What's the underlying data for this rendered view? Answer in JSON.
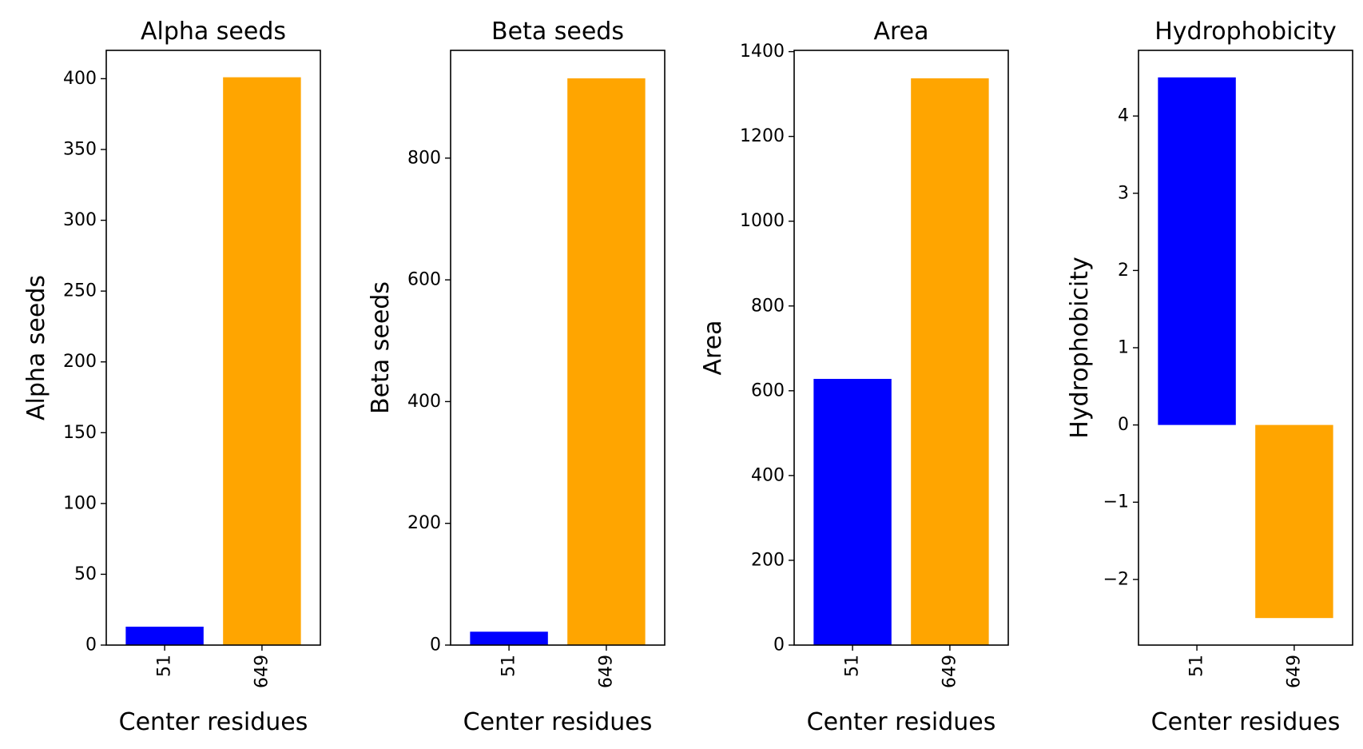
{
  "chart_data": [
    {
      "type": "bar",
      "title": "Alpha seeds",
      "xlabel": "Center residues",
      "ylabel": "Alpha seeds",
      "categories": [
        "51",
        "649"
      ],
      "values": [
        13,
        401
      ],
      "bar_colors": [
        "#0000ff",
        "#ffa500"
      ],
      "ylim": [
        0,
        420
      ],
      "yticks": [
        0,
        50,
        100,
        150,
        200,
        250,
        300,
        350,
        400
      ],
      "ytick_labels": [
        "0",
        "50",
        "100",
        "150",
        "200",
        "250",
        "300",
        "350",
        "400"
      ],
      "grid": false,
      "legend": "none"
    },
    {
      "type": "bar",
      "title": "Beta seeds",
      "xlabel": "Center residues",
      "ylabel": "Beta seeds",
      "categories": [
        "51",
        "649"
      ],
      "values": [
        22,
        931
      ],
      "bar_colors": [
        "#0000ff",
        "#ffa500"
      ],
      "ylim": [
        0,
        977
      ],
      "yticks": [
        0,
        200,
        400,
        600,
        800
      ],
      "ytick_labels": [
        "0",
        "200",
        "400",
        "600",
        "800"
      ],
      "grid": false,
      "legend": "none"
    },
    {
      "type": "bar",
      "title": "Area",
      "xlabel": "Center residues",
      "ylabel": "Area",
      "categories": [
        "51",
        "649"
      ],
      "values": [
        628,
        1337
      ],
      "bar_colors": [
        "#0000ff",
        "#ffa500"
      ],
      "ylim": [
        0,
        1403
      ],
      "yticks": [
        0,
        200,
        400,
        600,
        800,
        1000,
        1200,
        1400
      ],
      "ytick_labels": [
        "0",
        "200",
        "400",
        "600",
        "800",
        "1000",
        "1200",
        "1400"
      ],
      "grid": false,
      "legend": "none"
    },
    {
      "type": "bar",
      "title": "Hydrophobicity",
      "xlabel": "Center residues",
      "ylabel": "Hydrophobicity",
      "categories": [
        "51",
        "649"
      ],
      "values": [
        4.5,
        -2.5
      ],
      "bar_colors": [
        "#0000ff",
        "#ffa500"
      ],
      "ylim": [
        -2.85,
        4.85
      ],
      "yticks": [
        -2,
        -1,
        0,
        1,
        2,
        3,
        4
      ],
      "ytick_labels": [
        "−2",
        "−1",
        "0",
        "1",
        "2",
        "3",
        "4"
      ],
      "grid": false,
      "legend": "none"
    }
  ]
}
